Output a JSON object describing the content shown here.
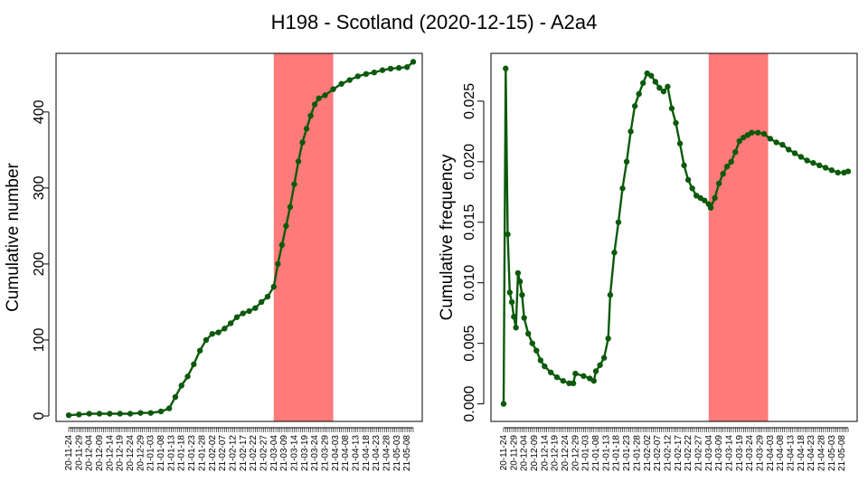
{
  "figure": {
    "title": "H198 - Scotland (2020-12-15) - A2a4",
    "colors": {
      "series": "#0b5a0b",
      "highlight": "#ff7a7a",
      "axis": "#000000"
    }
  },
  "chart_data": [
    {
      "type": "line",
      "panel": "left",
      "xlabel": "",
      "ylabel": "Cumulative number",
      "ylim": [
        0,
        470
      ],
      "yticks": [
        0,
        100,
        200,
        300,
        400
      ],
      "ytick_labels": [
        "0",
        "100",
        "200",
        "300",
        "400"
      ],
      "x_range": [
        "2020-11-24",
        "2021-05-11"
      ],
      "x_tick_labels": [
        "20-11-24",
        "20-11-29",
        "20-12-04",
        "20-12-09",
        "20-12-14",
        "20-12-19",
        "20-12-24",
        "20-12-29",
        "21-01-03",
        "21-01-08",
        "21-01-13",
        "21-01-18",
        "21-01-23",
        "21-01-28",
        "21-02-02",
        "21-02-07",
        "21-02-12",
        "21-02-17",
        "21-02-22",
        "21-02-27",
        "21-03-04",
        "21-03-09",
        "21-03-14",
        "21-03-19",
        "21-03-24",
        "21-03-29",
        "21-04-03",
        "21-04-08",
        "21-04-13",
        "21-04-18",
        "21-04-23",
        "21-04-28",
        "21-05-03",
        "21-05-08"
      ],
      "highlight": {
        "start": "2021-03-04",
        "end": "2021-04-02"
      },
      "series": [
        {
          "points": [
            [
              "2020-11-24",
              1
            ],
            [
              "2020-11-29",
              2
            ],
            [
              "2020-12-04",
              3
            ],
            [
              "2020-12-09",
              3
            ],
            [
              "2020-12-14",
              3
            ],
            [
              "2020-12-19",
              3
            ],
            [
              "2020-12-24",
              3
            ],
            [
              "2020-12-29",
              4
            ],
            [
              "2021-01-03",
              4
            ],
            [
              "2021-01-08",
              6
            ],
            [
              "2021-01-12",
              10
            ],
            [
              "2021-01-15",
              25
            ],
            [
              "2021-01-18",
              40
            ],
            [
              "2021-01-21",
              52
            ],
            [
              "2021-01-24",
              68
            ],
            [
              "2021-01-27",
              86
            ],
            [
              "2021-01-30",
              100
            ],
            [
              "2021-02-02",
              108
            ],
            [
              "2021-02-05",
              110
            ],
            [
              "2021-02-08",
              115
            ],
            [
              "2021-02-11",
              122
            ],
            [
              "2021-02-14",
              130
            ],
            [
              "2021-02-17",
              135
            ],
            [
              "2021-02-20",
              138
            ],
            [
              "2021-02-23",
              142
            ],
            [
              "2021-02-26",
              150
            ],
            [
              "2021-03-01",
              157
            ],
            [
              "2021-03-04",
              170
            ],
            [
              "2021-03-06",
              200
            ],
            [
              "2021-03-08",
              225
            ],
            [
              "2021-03-10",
              250
            ],
            [
              "2021-03-12",
              275
            ],
            [
              "2021-03-14",
              305
            ],
            [
              "2021-03-16",
              335
            ],
            [
              "2021-03-18",
              360
            ],
            [
              "2021-03-20",
              378
            ],
            [
              "2021-03-22",
              395
            ],
            [
              "2021-03-24",
              410
            ],
            [
              "2021-03-26",
              418
            ],
            [
              "2021-03-29",
              422
            ],
            [
              "2021-04-02",
              430
            ],
            [
              "2021-04-06",
              437
            ],
            [
              "2021-04-10",
              442
            ],
            [
              "2021-04-14",
              447
            ],
            [
              "2021-04-18",
              450
            ],
            [
              "2021-04-22",
              452
            ],
            [
              "2021-04-26",
              455
            ],
            [
              "2021-04-30",
              457
            ],
            [
              "2021-05-04",
              458
            ],
            [
              "2021-05-08",
              459
            ],
            [
              "2021-05-11",
              466
            ]
          ]
        }
      ]
    },
    {
      "type": "line",
      "panel": "right",
      "xlabel": "",
      "ylabel": "Cumulative frequency",
      "ylim": [
        -0.001,
        0.0285
      ],
      "yticks": [
        0,
        0.005,
        0.01,
        0.015,
        0.02,
        0.025
      ],
      "ytick_labels": [
        "0.000",
        "0.005",
        "0.010",
        "0.015",
        "0.020",
        "0.025"
      ],
      "x_range": [
        "2020-11-24",
        "2021-05-11"
      ],
      "x_tick_labels": [
        "20-11-24",
        "20-11-29",
        "20-12-04",
        "20-12-09",
        "20-12-14",
        "20-12-19",
        "20-12-24",
        "20-12-29",
        "21-01-03",
        "21-01-08",
        "21-01-13",
        "21-01-18",
        "21-01-23",
        "21-01-28",
        "21-02-02",
        "21-02-07",
        "21-02-12",
        "21-02-17",
        "21-02-22",
        "21-02-27",
        "21-03-04",
        "21-03-09",
        "21-03-14",
        "21-03-19",
        "21-03-24",
        "21-03-29",
        "21-04-03",
        "21-04-08",
        "21-04-13",
        "21-04-18",
        "21-04-23",
        "21-04-28",
        "21-05-03",
        "21-05-08"
      ],
      "highlight": {
        "start": "2021-03-04",
        "end": "2021-04-02"
      },
      "series": [
        {
          "points": [
            [
              "2020-11-24",
              0
            ],
            [
              "2020-11-25",
              0.0277
            ],
            [
              "2020-11-26",
              0.014
            ],
            [
              "2020-11-27",
              0.0092
            ],
            [
              "2020-11-28",
              0.0084
            ],
            [
              "2020-11-29",
              0.0072
            ],
            [
              "2020-11-30",
              0.0063
            ],
            [
              "2020-12-01",
              0.0108
            ],
            [
              "2020-12-02",
              0.0101
            ],
            [
              "2020-12-03",
              0.009
            ],
            [
              "2020-12-04",
              0.0071
            ],
            [
              "2020-12-06",
              0.0058
            ],
            [
              "2020-12-08",
              0.005
            ],
            [
              "2020-12-10",
              0.0044
            ],
            [
              "2020-12-12",
              0.0036
            ],
            [
              "2020-12-14",
              0.0031
            ],
            [
              "2020-12-17",
              0.0026
            ],
            [
              "2020-12-20",
              0.0022
            ],
            [
              "2020-12-23",
              0.0019
            ],
            [
              "2020-12-26",
              0.0017
            ],
            [
              "2020-12-28",
              0.0017
            ],
            [
              "2020-12-29",
              0.0025
            ],
            [
              "2021-01-02",
              0.0023
            ],
            [
              "2021-01-05",
              0.0021
            ],
            [
              "2021-01-07",
              0.0019
            ],
            [
              "2021-01-08",
              0.0027
            ],
            [
              "2021-01-10",
              0.0032
            ],
            [
              "2021-01-12",
              0.0038
            ],
            [
              "2021-01-14",
              0.0054
            ],
            [
              "2021-01-15",
              0.009
            ],
            [
              "2021-01-17",
              0.0125
            ],
            [
              "2021-01-19",
              0.015
            ],
            [
              "2021-01-21",
              0.0178
            ],
            [
              "2021-01-23",
              0.02
            ],
            [
              "2021-01-25",
              0.0225
            ],
            [
              "2021-01-27",
              0.0246
            ],
            [
              "2021-01-29",
              0.0256
            ],
            [
              "2021-01-31",
              0.0265
            ],
            [
              "2021-02-02",
              0.0273
            ],
            [
              "2021-02-04",
              0.0271
            ],
            [
              "2021-02-06",
              0.0266
            ],
            [
              "2021-02-08",
              0.0261
            ],
            [
              "2021-02-10",
              0.0258
            ],
            [
              "2021-02-12",
              0.0262
            ],
            [
              "2021-02-14",
              0.0244
            ],
            [
              "2021-02-16",
              0.0232
            ],
            [
              "2021-02-18",
              0.0215
            ],
            [
              "2021-02-20",
              0.0197
            ],
            [
              "2021-02-22",
              0.0185
            ],
            [
              "2021-02-24",
              0.0178
            ],
            [
              "2021-02-26",
              0.0172
            ],
            [
              "2021-02-28",
              0.017
            ],
            [
              "2021-03-02",
              0.0168
            ],
            [
              "2021-03-04",
              0.0165
            ],
            [
              "2021-03-05",
              0.0162
            ],
            [
              "2021-03-07",
              0.017
            ],
            [
              "2021-03-09",
              0.0182
            ],
            [
              "2021-03-11",
              0.019
            ],
            [
              "2021-03-13",
              0.0196
            ],
            [
              "2021-03-15",
              0.02
            ],
            [
              "2021-03-17",
              0.0208
            ],
            [
              "2021-03-19",
              0.0217
            ],
            [
              "2021-03-21",
              0.022
            ],
            [
              "2021-03-23",
              0.0222
            ],
            [
              "2021-03-25",
              0.0224
            ],
            [
              "2021-03-28",
              0.0224
            ],
            [
              "2021-03-31",
              0.0223
            ],
            [
              "2021-04-03",
              0.0219
            ],
            [
              "2021-04-06",
              0.0216
            ],
            [
              "2021-04-09",
              0.0214
            ],
            [
              "2021-04-12",
              0.021
            ],
            [
              "2021-04-15",
              0.0207
            ],
            [
              "2021-04-18",
              0.0204
            ],
            [
              "2021-04-21",
              0.0201
            ],
            [
              "2021-04-24",
              0.0199
            ],
            [
              "2021-04-27",
              0.0197
            ],
            [
              "2021-04-30",
              0.0195
            ],
            [
              "2021-05-03",
              0.0193
            ],
            [
              "2021-05-06",
              0.0191
            ],
            [
              "2021-05-09",
              0.0191
            ],
            [
              "2021-05-11",
              0.0192
            ]
          ]
        }
      ]
    }
  ]
}
